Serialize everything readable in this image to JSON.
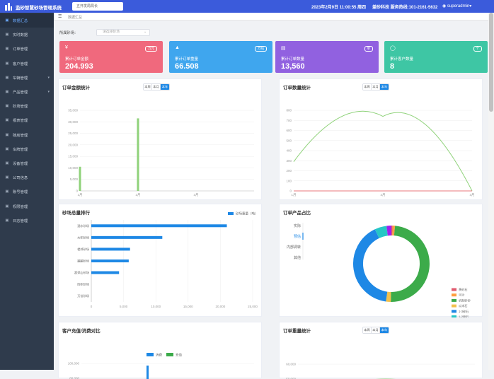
{
  "header": {
    "title": "监砂智慧砂场管理系统",
    "site": "五开发局局长",
    "datetime": "2023年2月9日 11:00:55 周四",
    "company": "盖砂科技 服务热线:101-2161-5632",
    "user": "superadmin▾"
  },
  "sidebar": {
    "items": [
      {
        "label": "数据汇总",
        "icon": "home-icon",
        "active": true
      },
      {
        "label": "实时数据",
        "icon": "realtime-icon"
      },
      {
        "label": "订单管理",
        "icon": "order-icon"
      },
      {
        "label": "客户管理",
        "icon": "customer-icon"
      },
      {
        "label": "车辆管理",
        "icon": "vehicle-icon",
        "arrow": true
      },
      {
        "label": "产品管理",
        "icon": "product-icon",
        "arrow": true
      },
      {
        "label": "砂场管理",
        "icon": "sandfield-icon"
      },
      {
        "label": "报表管理",
        "icon": "report-icon"
      },
      {
        "label": "磅房管理",
        "icon": "scale-icon"
      },
      {
        "label": "车牌管理",
        "icon": "plate-icon"
      },
      {
        "label": "设备管理",
        "icon": "device-icon"
      },
      {
        "label": "公司信息",
        "icon": "company-icon"
      },
      {
        "label": "账号管理",
        "icon": "account-icon"
      },
      {
        "label": "权限管理",
        "icon": "permission-icon"
      },
      {
        "label": "日志管理",
        "icon": "log-icon"
      }
    ]
  },
  "tabbar": {
    "crumb": "数据汇总"
  },
  "filter": {
    "label": "所属砂场：",
    "placeholder": "请选择砂场"
  },
  "stats": [
    {
      "label": "累计订单金额",
      "value": "204.993",
      "unit": "万元",
      "color": "#f0697d",
      "icon": "yen-icon",
      "glyph": "¥"
    },
    {
      "label": "累计订单重量",
      "value": "66.508",
      "unit": "万吨",
      "color": "#3fa6ee",
      "icon": "weight-icon",
      "glyph": "▲"
    },
    {
      "label": "累计订单数量",
      "value": "13,560",
      "unit": "单",
      "color": "#9161e0",
      "icon": "document-icon",
      "glyph": "▤"
    },
    {
      "label": "累计客户数量",
      "value": "8",
      "unit": "个",
      "color": "#3ec6a4",
      "icon": "person-icon",
      "glyph": "◯"
    }
  ],
  "segments": [
    "本周",
    "本月",
    "本年"
  ],
  "cards": {
    "amount": "订单金额统计",
    "count": "订单数量统计",
    "rank": "砂场总量排行",
    "share": "订单产品占比",
    "balance": "客户充值/消费对比",
    "weight": "订单重量统计"
  },
  "chart_data": [
    {
      "type": "bar",
      "title": "订单金额统计",
      "categories": [
        "1月",
        "2月",
        "3月"
      ],
      "values": [
        10500,
        31500,
        0
      ],
      "ylim": [
        0,
        35000
      ],
      "yticks": [
        "0",
        "5,000",
        "10,000",
        "15,000",
        "20,000",
        "25,000",
        "30,000",
        "35,000"
      ],
      "color": "#8fd27a"
    },
    {
      "type": "line",
      "title": "订单数量统计",
      "categories": [
        "1月",
        "2月",
        "3月"
      ],
      "series": [
        {
          "values": [
            290,
            740,
            0
          ],
          "color": "#8fd27a"
        },
        {
          "values": [
            0,
            0,
            0
          ],
          "color": "#e8777e"
        }
      ],
      "ylim": [
        0,
        800
      ],
      "yticks": [
        "0",
        "100",
        "200",
        "300",
        "400",
        "500",
        "600",
        "700",
        "800"
      ]
    },
    {
      "type": "bar",
      "orientation": "horizontal",
      "title": "砂场总量排行",
      "legend": "砂场重量（吨）",
      "categories": [
        "泗水砂场",
        "大积砂场",
        "楼郊砂场",
        "蹦蹦砂场",
        "超郊山砂场",
        "四积砂场",
        "万佳砂场"
      ],
      "values": [
        21000,
        11000,
        6000,
        5800,
        4300,
        0,
        0
      ],
      "xlim": [
        0,
        25000
      ],
      "xticks": [
        "0",
        "5,000",
        "10,000",
        "15,000",
        "20,000",
        "25,000"
      ],
      "color": "#1e88e5"
    },
    {
      "type": "pie",
      "title": "订单产品占比",
      "tabs": [
        "实际",
        "预估",
        "内部调转",
        "其他"
      ],
      "active_tab": 1,
      "slices": [
        {
          "name": "黄砂石",
          "value": 0.5,
          "color": "#e05a6e"
        },
        {
          "name": "河沙",
          "value": 1,
          "color": "#ff9f40"
        },
        {
          "name": "机制砂砂",
          "value": 48,
          "color": "#3cab4a"
        },
        {
          "name": "瓜米石",
          "value": 2,
          "color": "#f2c14e"
        },
        {
          "name": "1-3碎石",
          "value": 40,
          "color": "#1e88e5"
        },
        {
          "name": "1-2碎石",
          "value": 5,
          "color": "#26c6c6"
        },
        {
          "name": "毛石（人头石）",
          "value": 2,
          "color": "#a020f0"
        }
      ]
    },
    {
      "type": "bar",
      "title": "客户充值/消费对比",
      "legend": [
        "消费",
        "充值"
      ],
      "legend_colors": [
        "#1e88e5",
        "#3cab4a"
      ],
      "yticks": [
        "100,000",
        "80,000",
        "60,000"
      ],
      "visible_values": {
        "消费": 100000
      }
    },
    {
      "type": "line",
      "title": "订单重量统计",
      "yticks": [
        "60,000",
        "50,000",
        "40,000"
      ]
    }
  ]
}
